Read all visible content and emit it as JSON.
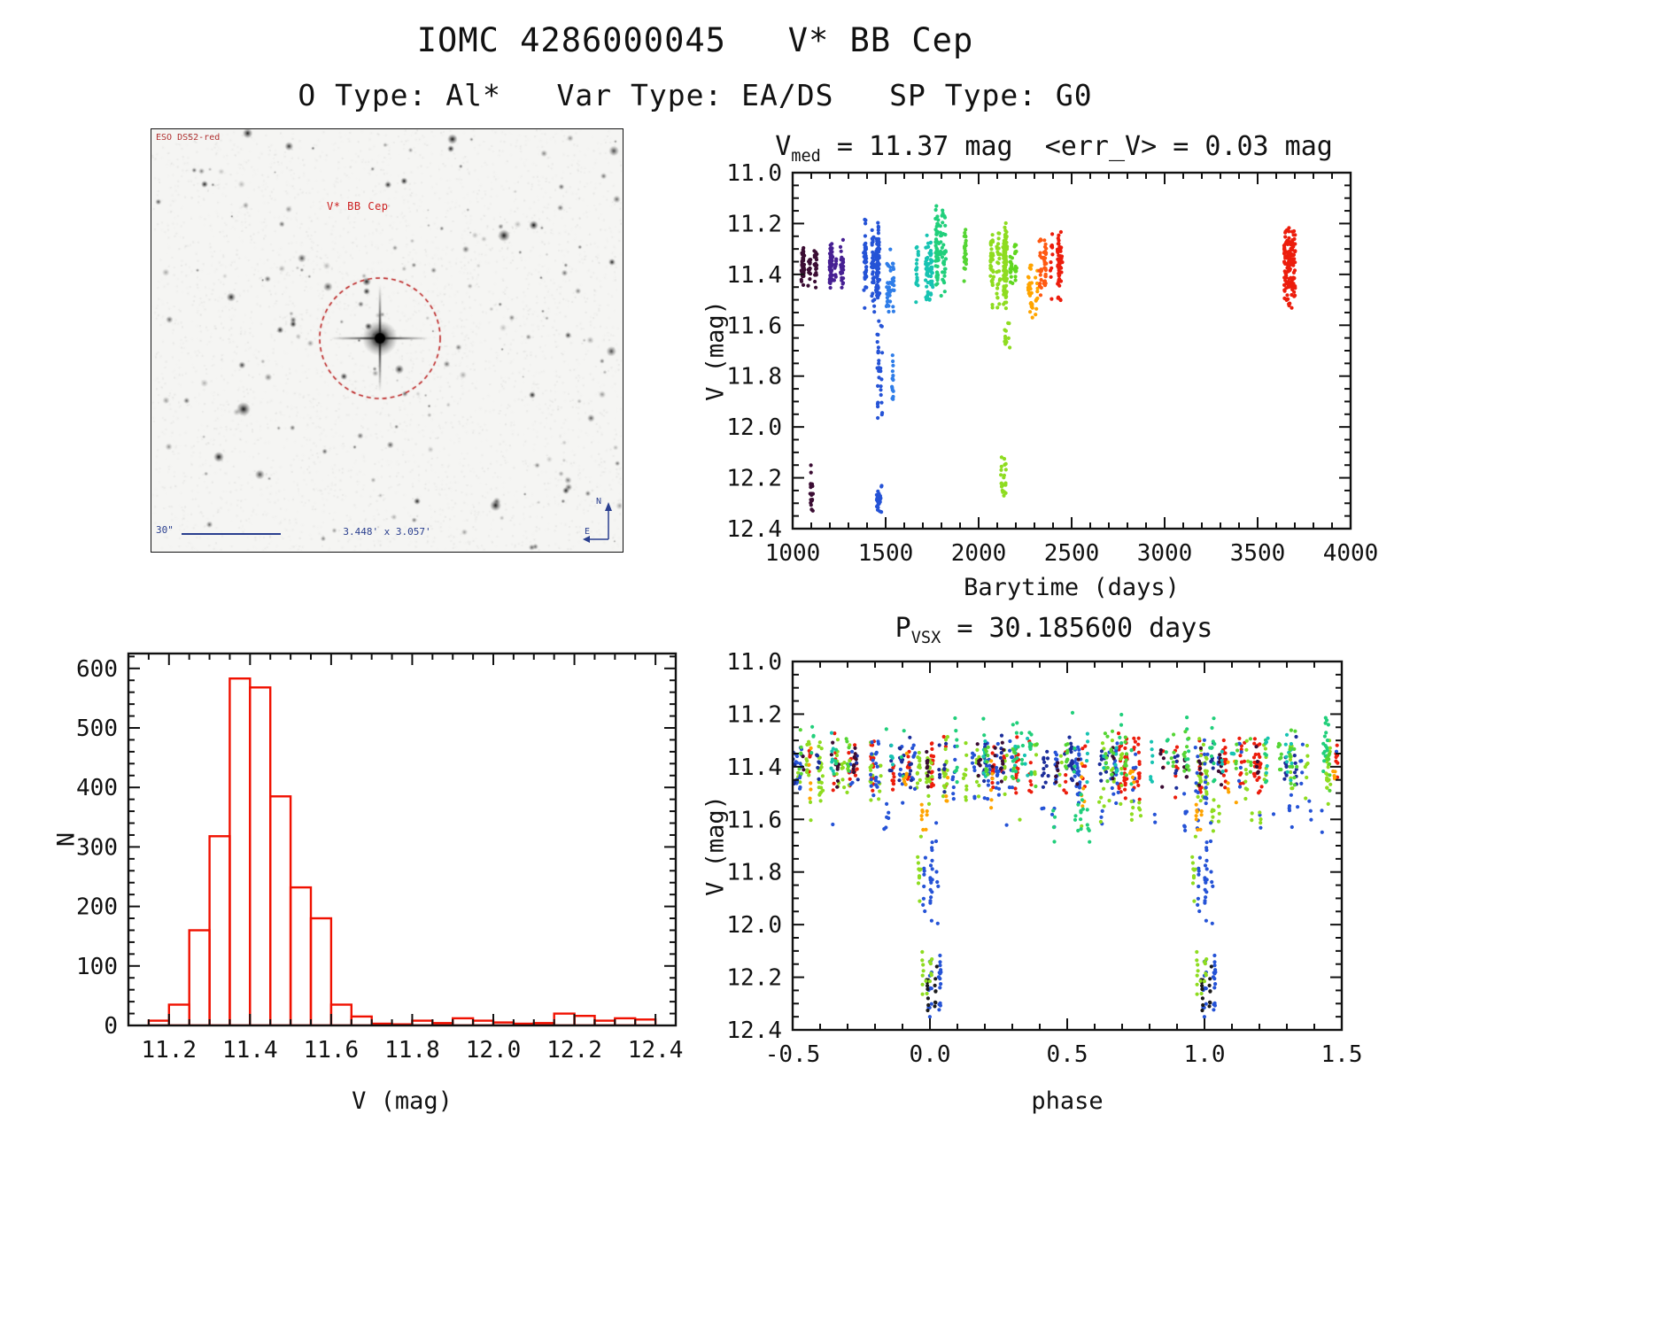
{
  "header": {
    "title": "IOMC 4286000045   V* BB Cep",
    "subtitle": "O Type: Al*   Var Type: EA/DS   SP Type: G0"
  },
  "sky": {
    "survey_label": "ESO DSS2-red",
    "target_label": "V* BB Cep",
    "scale_label": "30\"",
    "fov_label": "3.448' x 3.057'",
    "compass_north": "N",
    "compass_east": "E",
    "seed": 42,
    "circle_color": "#bb2222"
  },
  "chart_data": [
    {
      "id": "lightcurve",
      "type": "scatter",
      "seed": 3,
      "title": {
        "pre": "V",
        "sub": "med",
        "rest": " = 11.37 mag  <err_V> = 0.03 mag"
      },
      "xlabel": "Barytime (days)",
      "ylabel": "V (mag)",
      "xlim": [
        1000,
        4000
      ],
      "ylim": [
        11.0,
        12.4
      ],
      "invert_y": true,
      "xticks": [
        1000,
        1500,
        2000,
        2500,
        3000,
        3500,
        4000
      ],
      "xtick_labels": [
        "1000",
        "1500",
        "2000",
        "2500",
        "3000",
        "3500",
        "4000"
      ],
      "yticks": [
        11.0,
        11.2,
        11.4,
        11.6,
        11.8,
        12.0,
        12.2,
        12.4
      ],
      "ytick_labels": [
        "11.0",
        "11.2",
        "11.4",
        "11.6",
        "11.8",
        "12.0",
        "12.2",
        "12.4"
      ],
      "xminor": 100,
      "yminor": 0.05,
      "clusters": [
        {
          "c": "#3b0d33",
          "x": [
            1048,
            1125
          ],
          "y": [
            11.28,
            11.46
          ],
          "n": 75,
          "cols": 4,
          "jit": 7
        },
        {
          "c": "#3b0d33",
          "x": [
            1085,
            1118
          ],
          "y": [
            12.14,
            12.37
          ],
          "n": 22,
          "cols": 2,
          "jit": 5
        },
        {
          "c": "#472093",
          "x": [
            1130,
            1272
          ],
          "y": [
            11.26,
            11.47
          ],
          "n": 95,
          "cols": 6,
          "jit": 8
        },
        {
          "c": "#2553d6",
          "x": [
            1385,
            1468
          ],
          "y": [
            11.16,
            11.56
          ],
          "n": 150,
          "cols": 4,
          "jit": 8
        },
        {
          "c": "#2553d6",
          "x": [
            1448,
            1480
          ],
          "y": [
            11.58,
            12.02
          ],
          "n": 32,
          "cols": 2,
          "jit": 5
        },
        {
          "c": "#2553d6",
          "x": [
            1428,
            1500
          ],
          "y": [
            12.22,
            12.38
          ],
          "n": 28,
          "cols": 3,
          "jit": 6
        },
        {
          "c": "#2f7de8",
          "x": [
            1505,
            1562
          ],
          "y": [
            11.28,
            11.62
          ],
          "n": 45,
          "cols": 3,
          "jit": 6
        },
        {
          "c": "#2f7de8",
          "x": [
            1515,
            1548
          ],
          "y": [
            11.66,
            11.99
          ],
          "n": 15,
          "cols": 2,
          "jit": 4
        },
        {
          "c": "#17c3b2",
          "x": [
            1668,
            1762
          ],
          "y": [
            11.24,
            11.52
          ],
          "n": 85,
          "cols": 5,
          "jit": 7
        },
        {
          "c": "#21cf7b",
          "x": [
            1772,
            1852
          ],
          "y": [
            11.12,
            11.5
          ],
          "n": 95,
          "cols": 4,
          "jit": 7
        },
        {
          "c": "#55d534",
          "x": [
            1900,
            1938
          ],
          "y": [
            11.2,
            11.43
          ],
          "n": 28,
          "cols": 2,
          "jit": 6
        },
        {
          "c": "#8edc20",
          "x": [
            2068,
            2172
          ],
          "y": [
            11.19,
            11.57
          ],
          "n": 165,
          "cols": 5,
          "jit": 9
        },
        {
          "c": "#8edc20",
          "x": [
            2108,
            2162
          ],
          "y": [
            11.57,
            11.7
          ],
          "n": 13,
          "cols": 2,
          "jit": 6
        },
        {
          "c": "#8edc20",
          "x": [
            2112,
            2156
          ],
          "y": [
            12.07,
            12.32
          ],
          "n": 22,
          "cols": 2,
          "jit": 6
        },
        {
          "c": "#60d71f",
          "x": [
            2176,
            2218
          ],
          "y": [
            11.24,
            11.46
          ],
          "n": 32,
          "cols": 2,
          "jit": 7
        },
        {
          "c": "#ffa400",
          "x": [
            2262,
            2314
          ],
          "y": [
            11.3,
            11.63
          ],
          "n": 40,
          "cols": 3,
          "jit": 6
        },
        {
          "c": "#ff5a12",
          "x": [
            2318,
            2384
          ],
          "y": [
            11.25,
            11.5
          ],
          "n": 48,
          "cols": 3,
          "jit": 7
        },
        {
          "c": "#ec1d0c",
          "x": [
            2386,
            2458
          ],
          "y": [
            11.2,
            11.52
          ],
          "n": 62,
          "cols": 4,
          "jit": 6
        },
        {
          "c": "#ec1d0c",
          "x": [
            3642,
            3702
          ],
          "y": [
            11.17,
            11.55
          ],
          "n": 150
        }
      ]
    },
    {
      "id": "vhist",
      "type": "histogram",
      "xlabel": "V (mag)",
      "ylabel": "N",
      "bar_color": "#f01000",
      "xlim": [
        11.1,
        12.45
      ],
      "ylim": [
        0,
        625
      ],
      "invert_y": false,
      "xticks": [
        11.2,
        11.4,
        11.6,
        11.8,
        12.0,
        12.2,
        12.4
      ],
      "xtick_labels": [
        "11.2",
        "11.4",
        "11.6",
        "11.8",
        "12.0",
        "12.2",
        "12.4"
      ],
      "yticks": [
        0,
        100,
        200,
        300,
        400,
        500,
        600
      ],
      "ytick_labels": [
        "0",
        "100",
        "200",
        "300",
        "400",
        "500",
        "600"
      ],
      "xminor": 0.05,
      "yminor": 20,
      "bin_start": 11.15,
      "bin_width": 0.05,
      "counts": [
        8,
        35,
        160,
        318,
        583,
        568,
        385,
        232,
        180,
        35,
        15,
        3,
        2,
        8,
        4,
        12,
        8,
        5,
        3,
        4,
        20,
        16,
        8,
        12,
        10
      ]
    },
    {
      "id": "phase",
      "type": "scatter",
      "seed": 9,
      "title": {
        "pre": "P",
        "sub": "VSX",
        "rest": " = 30.185600 days"
      },
      "xlabel": "phase",
      "ylabel": "V (mag)",
      "xlim": [
        -0.5,
        1.5
      ],
      "ylim": [
        11.0,
        12.4
      ],
      "invert_y": true,
      "xticks": [
        -0.5,
        0.0,
        0.5,
        1.0,
        1.5
      ],
      "xtick_labels": [
        "-0.5",
        "0.0",
        "0.5",
        "1.0",
        "1.5"
      ],
      "yticks": [
        11.0,
        11.2,
        11.4,
        11.6,
        11.8,
        12.0,
        12.2,
        12.4
      ],
      "ytick_labels": [
        "11.0",
        "11.2",
        "11.4",
        "11.6",
        "11.8",
        "12.0",
        "12.2",
        "12.4"
      ],
      "xminor": 0.1,
      "yminor": 0.05,
      "clusters": [
        {
          "c": "#ec1d0c",
          "x": [
            -0.5,
            1.5
          ],
          "y": [
            11.26,
            11.53
          ],
          "n": 260,
          "cols": 32,
          "jit": 0.006
        },
        {
          "c": "#8edc20",
          "x": [
            -0.5,
            1.5
          ],
          "y": [
            11.27,
            11.56
          ],
          "n": 260,
          "cols": 32,
          "jit": 0.006
        },
        {
          "c": "#2553d6",
          "x": [
            -0.5,
            1.5
          ],
          "y": [
            11.28,
            11.56
          ],
          "n": 200,
          "cols": 28,
          "jit": 0.006
        },
        {
          "c": "#1c2e9a",
          "x": [
            -0.5,
            1.5
          ],
          "y": [
            11.27,
            11.5
          ],
          "n": 130,
          "cols": 22,
          "jit": 0.006
        },
        {
          "c": "#3b0d33",
          "x": [
            -0.5,
            1.5
          ],
          "y": [
            11.3,
            11.5
          ],
          "n": 90,
          "cols": 16,
          "jit": 0.006
        },
        {
          "c": "#21cf7b",
          "x": [
            -0.5,
            1.5
          ],
          "y": [
            11.17,
            11.48
          ],
          "n": 110,
          "cols": 20,
          "jit": 0.006
        },
        {
          "c": "#17c3b2",
          "x": [
            -0.5,
            1.5
          ],
          "y": [
            11.24,
            11.48
          ],
          "n": 70,
          "cols": 14,
          "jit": 0.006
        },
        {
          "c": "#ffa400",
          "x": [
            -0.5,
            1.5
          ],
          "y": [
            11.32,
            11.58
          ],
          "n": 45,
          "cols": 10,
          "jit": 0.006
        },
        {
          "c": "#55d534",
          "x": [
            -0.5,
            1.5
          ],
          "y": [
            11.24,
            11.5
          ],
          "n": 110,
          "cols": 18,
          "jit": 0.006
        },
        {
          "c": "#2553d6",
          "x": [
            -0.5,
            1.5
          ],
          "y": [
            11.5,
            11.66
          ],
          "n": 42,
          "cols": 22,
          "jit": 0.005
        },
        {
          "c": "#8edc20",
          "x": [
            -0.5,
            1.5
          ],
          "y": [
            11.5,
            11.66
          ],
          "n": 32,
          "cols": 16,
          "jit": 0.005
        },
        {
          "c": "#21cf7b",
          "x": [
            0.42,
            0.6
          ],
          "y": [
            11.48,
            11.7
          ],
          "n": 20,
          "cols": 5,
          "jit": 0.006
        },
        {
          "c": "#2553d6",
          "x": [
            -0.04,
            0.045
          ],
          "y": [
            11.56,
            12.05
          ],
          "n": 30,
          "cols": 5,
          "jit": 0.004,
          "mirror": 1
        },
        {
          "c": "#2553d6",
          "x": [
            -0.005,
            0.045
          ],
          "y": [
            12.1,
            12.38
          ],
          "n": 26,
          "cols": 4,
          "jit": 0.004,
          "mirror": 1
        },
        {
          "c": "#1b1b1b",
          "x": [
            -0.02,
            0.03
          ],
          "y": [
            12.12,
            12.34
          ],
          "n": 16,
          "cols": 3,
          "jit": 0.004,
          "mirror": 1
        },
        {
          "c": "#8edc20",
          "x": [
            -0.05,
            0.005
          ],
          "y": [
            12.06,
            12.31
          ],
          "n": 16,
          "cols": 3,
          "jit": 0.004,
          "mirror": 1
        },
        {
          "c": "#ffa400",
          "x": [
            -0.03,
            0.005
          ],
          "y": [
            11.52,
            11.66
          ],
          "n": 9,
          "cols": 2,
          "jit": 0.004,
          "mirror": 1
        },
        {
          "c": "#8edc20",
          "x": [
            -0.055,
            -0.02
          ],
          "y": [
            11.58,
            12.0
          ],
          "n": 10,
          "cols": 2,
          "jit": 0.004,
          "mirror": 1
        }
      ]
    }
  ]
}
